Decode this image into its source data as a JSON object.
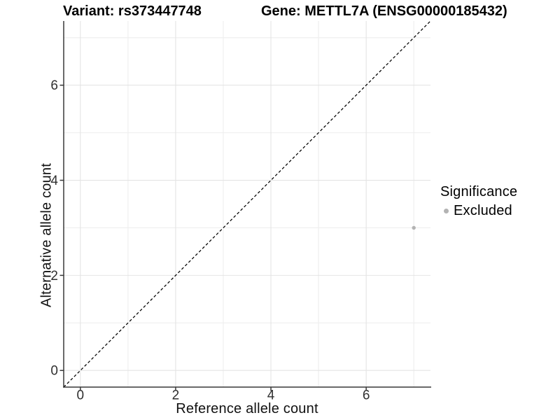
{
  "figure": {
    "title_variant": "Variant: rs373447748",
    "title_gene": "Gene: METTL7A (ENSG00000185432)"
  },
  "axes": {
    "x_title": "Reference allele count",
    "y_title": "Alternative allele count"
  },
  "legend": {
    "title": "Significance",
    "items": [
      {
        "label": "Excluded",
        "marker": "circle-icon",
        "color": "#b3b3b3"
      }
    ]
  },
  "chart_data": {
    "type": "scatter",
    "title": [
      "Variant: rs373447748",
      "Gene: METTL7A (ENSG00000185432)"
    ],
    "xlabel": "Reference allele count",
    "ylabel": "Alternative allele count",
    "xlim": [
      -0.35,
      7.35
    ],
    "ylim": [
      -0.35,
      7.35
    ],
    "x_ticks": [
      0,
      2,
      4,
      6
    ],
    "y_ticks": [
      0,
      2,
      4,
      6
    ],
    "x_minor_ticks": [
      1,
      3,
      5,
      7
    ],
    "y_minor_ticks": [
      1,
      3,
      5,
      7
    ],
    "grid": "major+minor",
    "legend_position": "right",
    "series": [
      {
        "name": "Excluded",
        "color": "#b3b3b3",
        "points": [
          {
            "x": 7,
            "y": 3
          }
        ]
      }
    ],
    "reference_line": {
      "style": "dashed",
      "color": "#000000",
      "x1": -0.35,
      "y1": -0.35,
      "x2": 7.35,
      "y2": 7.35
    }
  },
  "colors": {
    "background": "#ffffff",
    "grid_major": "#e4e4e4",
    "grid_minor": "#eeeeee",
    "axis_line": "#383838",
    "tick_label": "#303030",
    "point": "#b3b3b3"
  }
}
